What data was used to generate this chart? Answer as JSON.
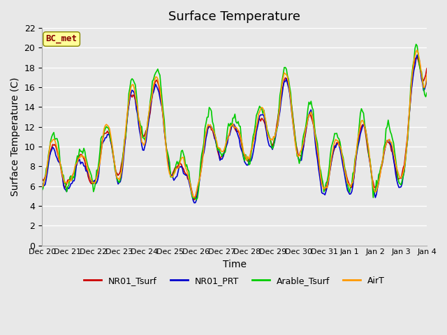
{
  "title": "Surface Temperature",
  "xlabel": "Time",
  "ylabel": "Surface Temperature (C)",
  "ylim": [
    0,
    22
  ],
  "yticks": [
    0,
    2,
    4,
    6,
    8,
    10,
    12,
    14,
    16,
    18,
    20,
    22
  ],
  "colors": {
    "NR01_Tsurf": "#cc0000",
    "NR01_PRT": "#0000cc",
    "Arable_Tsurf": "#00cc00",
    "AirT": "#ff9900"
  },
  "legend_labels": [
    "NR01_Tsurf",
    "NR01_PRT",
    "Arable_Tsurf",
    "AirT"
  ],
  "annotation": "BC_met",
  "annotation_color": "#880000",
  "annotation_bg": "#ffff99",
  "bg_color": "#e8e8e8",
  "plot_bg": "#f0f0f0",
  "grid_color": "#ffffff",
  "xtick_labels": [
    "Dec 20",
    "Dec 21",
    "Dec 22",
    "Dec 23",
    "Dec 24",
    "Dec 25",
    "Dec 26",
    "Dec 27",
    "Dec 28",
    "Dec 29",
    "Dec 30",
    "Dec 31",
    "Jan 1",
    "Jan 2",
    "Jan 3",
    "Jan 4"
  ],
  "linewidth": 1.2
}
